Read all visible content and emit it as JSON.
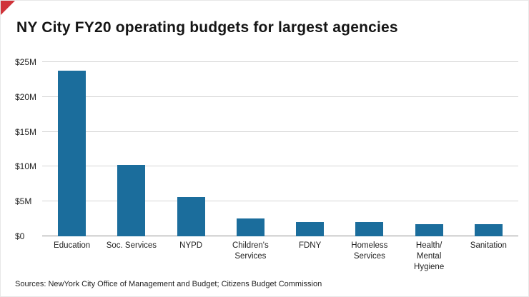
{
  "title": "NY City FY20 operating budgets for largest agencies",
  "source_note": "Sources: NewYork City Office of Management and Budget; Citizens Budget Commission",
  "accent_color": "#d0343a",
  "bar_color": "#1b6d9c",
  "chart_data": {
    "type": "bar",
    "title": "NY City FY20 operating budgets for largest agencies",
    "categories": [
      "Education",
      "Soc. Services",
      "NYPD",
      "Children's\nServices",
      "FDNY",
      "Homeless\nServices",
      "Health/\nMental\nHygiene",
      "Sanitation"
    ],
    "values": [
      23.8,
      10.2,
      5.6,
      2.6,
      2.1,
      2.1,
      1.7,
      1.7
    ],
    "unit": "$M",
    "xlabel": "",
    "ylabel": "",
    "ylim": [
      0,
      25
    ],
    "ytick_step": 5,
    "yticks": [
      0,
      5,
      10,
      15,
      20,
      25
    ],
    "ytick_labels": [
      "$0",
      "$5M",
      "$10M",
      "$15M",
      "$20M",
      "$25M"
    ],
    "grid": "horizontal",
    "legend": "none",
    "bar_color": "#1b6d9c"
  }
}
